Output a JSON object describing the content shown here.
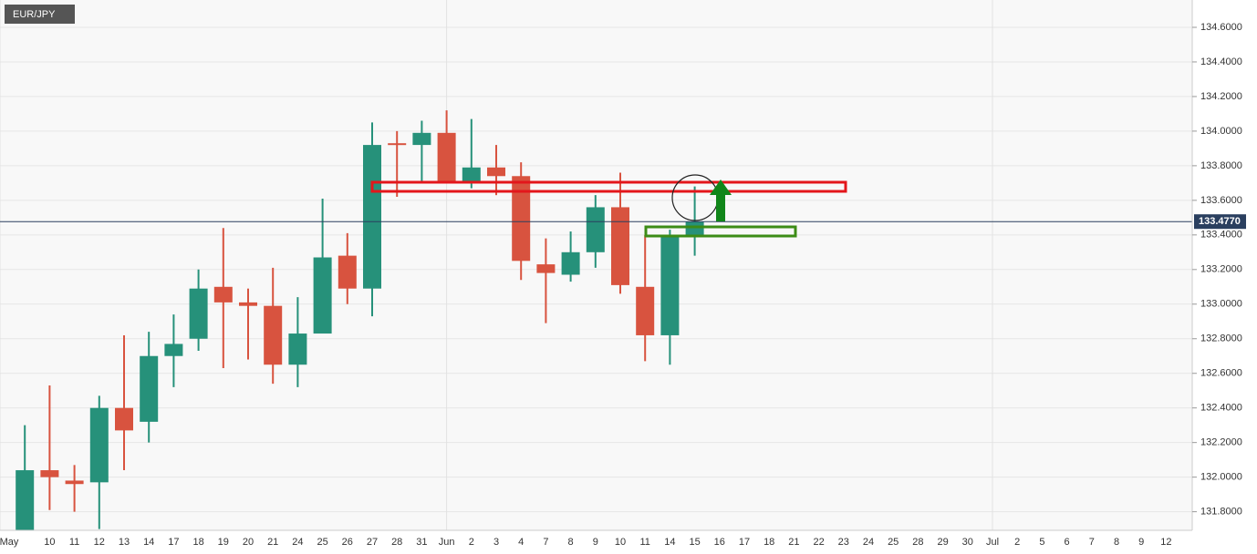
{
  "chart_data": {
    "type": "candlestick",
    "symbol": "EUR/JPY",
    "categories": [
      "May",
      null,
      "10",
      "11",
      "12",
      "13",
      "14",
      "17",
      "18",
      "19",
      "20",
      "21",
      "24",
      "25",
      "26",
      "27",
      "28",
      "31",
      "Jun",
      "2",
      "3",
      "4",
      "7",
      "8",
      "9",
      "10",
      "11",
      "14",
      "15",
      "16",
      "17",
      "18",
      "21",
      "22",
      "23",
      "24",
      "25",
      "28",
      "29",
      "30",
      "Jul",
      "2",
      "5",
      "6",
      "7",
      "8",
      "9",
      "12"
    ],
    "open": [
      null,
      131.65,
      132.04,
      131.98,
      131.97,
      132.4,
      132.32,
      132.7,
      132.8,
      133.1,
      133.01,
      132.99,
      132.65,
      132.83,
      133.28,
      133.09,
      133.93,
      133.92,
      133.99,
      133.7,
      133.79,
      133.74,
      133.23,
      133.17,
      133.3,
      133.56,
      133.1,
      132.82,
      133.4,
      null,
      null,
      null,
      null,
      null,
      null,
      null,
      null,
      null,
      null,
      null,
      null,
      null,
      null,
      null,
      null,
      null,
      null,
      null
    ],
    "high": [
      null,
      132.3,
      132.53,
      132.07,
      132.47,
      132.82,
      132.84,
      132.94,
      133.2,
      133.44,
      133.09,
      133.21,
      133.04,
      133.61,
      133.41,
      134.05,
      134.0,
      134.06,
      134.12,
      134.07,
      133.92,
      133.82,
      133.38,
      133.42,
      133.63,
      133.76,
      133.4,
      133.43,
      133.68,
      null,
      null,
      null,
      null,
      null,
      null,
      null,
      null,
      null,
      null,
      null,
      null,
      null,
      null,
      null,
      null,
      null,
      null,
      null
    ],
    "low": [
      null,
      131.58,
      131.81,
      131.8,
      131.7,
      132.04,
      132.2,
      132.52,
      132.73,
      132.63,
      132.68,
      132.54,
      132.52,
      132.83,
      133.0,
      132.93,
      133.62,
      133.7,
      133.7,
      133.67,
      133.63,
      133.14,
      132.89,
      133.13,
      133.21,
      133.06,
      132.67,
      132.65,
      133.28,
      null,
      null,
      null,
      null,
      null,
      null,
      null,
      null,
      null,
      null,
      null,
      null,
      null,
      null,
      null,
      null,
      null,
      null,
      null
    ],
    "close": [
      null,
      132.04,
      132.0,
      131.96,
      132.4,
      132.27,
      132.7,
      132.77,
      133.09,
      133.01,
      132.99,
      132.65,
      132.83,
      133.27,
      133.09,
      133.92,
      133.92,
      133.99,
      133.7,
      133.79,
      133.74,
      133.25,
      133.18,
      133.3,
      133.56,
      133.11,
      132.82,
      133.4,
      133.477,
      null,
      null,
      null,
      null,
      null,
      null,
      null,
      null,
      null,
      null,
      null,
      null,
      null,
      null,
      null,
      null,
      null,
      null,
      null
    ],
    "up_color": "#26917a",
    "down_color": "#d8533f",
    "ylim": [
      131.7,
      134.7
    ],
    "yticks": [
      {
        "value": 131.8,
        "label": "131.8000"
      },
      {
        "value": 132.0,
        "label": "132.0000"
      },
      {
        "value": 132.2,
        "label": "132.2000"
      },
      {
        "value": 132.4,
        "label": "132.4000"
      },
      {
        "value": 132.6,
        "label": "132.6000"
      },
      {
        "value": 132.8,
        "label": "132.8000"
      },
      {
        "value": 133.0,
        "label": "133.0000"
      },
      {
        "value": 133.2,
        "label": "133.2000"
      },
      {
        "value": 133.4,
        "label": "133.4000"
      },
      {
        "value": 133.6,
        "label": "133.6000"
      },
      {
        "value": 133.8,
        "label": "133.8000"
      },
      {
        "value": 134.0,
        "label": "134.0000"
      },
      {
        "value": 134.2,
        "label": "134.2000"
      },
      {
        "value": 134.4,
        "label": "134.4000"
      },
      {
        "value": 134.6,
        "label": "134.6000"
      }
    ],
    "last_price": {
      "value": 133.477,
      "label": "133.4770"
    },
    "grid": true
  }
}
